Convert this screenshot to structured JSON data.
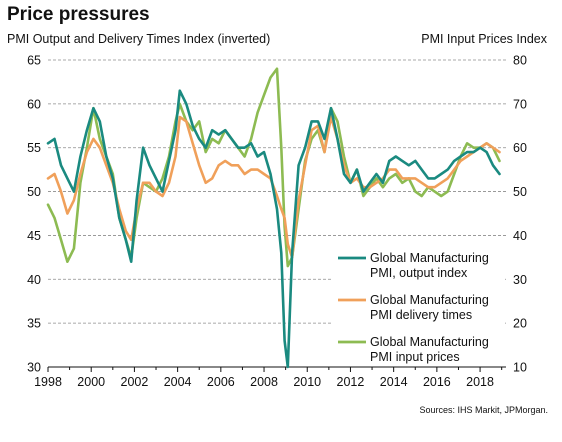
{
  "chart_data": {
    "type": "line",
    "title": "Price pressures",
    "left_axis_title": "PMI Output and Delivery Times Index (inverted)",
    "right_axis_title": "PMI Input Prices Index",
    "source": "Sources: IHS Markit, JPMorgan.",
    "x_ticks": [
      "1998",
      "2000",
      "2002",
      "2004",
      "2006",
      "2008",
      "2010",
      "2012",
      "2014",
      "2016",
      "2018"
    ],
    "xlim": [
      1998,
      2019.2
    ],
    "y_left": {
      "lim": [
        30,
        65
      ],
      "ticks": [
        30,
        35,
        40,
        45,
        50,
        55,
        60,
        65
      ]
    },
    "y_right": {
      "lim": [
        10,
        80
      ],
      "ticks": [
        10,
        20,
        30,
        40,
        50,
        60,
        70,
        80
      ]
    },
    "grid": "horizontal dashed",
    "legend_position": "bottom-right",
    "series": [
      {
        "name": "Global Manufacturing PMI, output index",
        "axis": "left",
        "color": "#1a8a80",
        "x": [
          1998,
          1998.3,
          1998.6,
          1998.9,
          1999.2,
          1999.5,
          1999.8,
          2000.1,
          2000.4,
          2000.7,
          2001.0,
          2001.3,
          2001.6,
          2001.85,
          2002.1,
          2002.4,
          2002.7,
          2003.0,
          2003.3,
          2003.6,
          2003.9,
          2004.1,
          2004.4,
          2004.7,
          2005.0,
          2005.3,
          2005.6,
          2005.9,
          2006.2,
          2006.5,
          2006.8,
          2007.1,
          2007.4,
          2007.7,
          2008.0,
          2008.3,
          2008.6,
          2008.8,
          2008.95,
          2009.1,
          2009.3,
          2009.6,
          2009.9,
          2010.2,
          2010.5,
          2010.8,
          2011.1,
          2011.4,
          2011.7,
          2012.0,
          2012.3,
          2012.6,
          2012.9,
          2013.2,
          2013.5,
          2013.8,
          2014.1,
          2014.4,
          2014.7,
          2015.0,
          2015.3,
          2015.6,
          2015.9,
          2016.2,
          2016.5,
          2016.8,
          2017.1,
          2017.4,
          2017.7,
          2018.0,
          2018.3,
          2018.6,
          2018.9
        ],
        "values": [
          55.5,
          56.0,
          53.0,
          51.5,
          50.0,
          54.0,
          57.0,
          59.5,
          58.0,
          54.0,
          51.5,
          47.0,
          44.5,
          42.0,
          49.0,
          55.0,
          53.0,
          51.5,
          50.0,
          53.5,
          57.0,
          61.5,
          60.0,
          57.5,
          56.0,
          55.0,
          57.0,
          56.5,
          57.0,
          56.0,
          55.0,
          55.0,
          55.5,
          54.0,
          54.5,
          52.0,
          48.0,
          43.0,
          33.0,
          30.0,
          43.0,
          53.0,
          55.0,
          58.0,
          58.0,
          56.0,
          59.5,
          56.0,
          52.0,
          51.0,
          52.5,
          50.0,
          51.0,
          52.0,
          51.0,
          53.5,
          54.0,
          53.5,
          53.0,
          53.5,
          52.5,
          51.5,
          51.5,
          52.0,
          52.5,
          53.5,
          54.0,
          54.5,
          54.5,
          55.0,
          54.5,
          53.0,
          52.0
        ]
      },
      {
        "name": "Global Manufacturing PMI delivery times",
        "axis": "left",
        "color": "#f0a05a",
        "x": [
          1998,
          1998.3,
          1998.6,
          1998.9,
          1999.2,
          1999.5,
          1999.8,
          2000.1,
          2000.4,
          2000.7,
          2001.0,
          2001.3,
          2001.6,
          2001.85,
          2002.1,
          2002.4,
          2002.7,
          2003.0,
          2003.3,
          2003.6,
          2003.9,
          2004.1,
          2004.4,
          2004.7,
          2005.0,
          2005.3,
          2005.6,
          2005.9,
          2006.2,
          2006.5,
          2006.8,
          2007.1,
          2007.4,
          2007.7,
          2008.0,
          2008.3,
          2008.6,
          2008.8,
          2008.95,
          2009.1,
          2009.3,
          2009.6,
          2009.9,
          2010.2,
          2010.5,
          2010.8,
          2011.1,
          2011.4,
          2011.7,
          2012.0,
          2012.3,
          2012.6,
          2012.9,
          2013.2,
          2013.5,
          2013.8,
          2014.1,
          2014.4,
          2014.7,
          2015.0,
          2015.3,
          2015.6,
          2015.9,
          2016.2,
          2016.5,
          2016.8,
          2017.1,
          2017.4,
          2017.7,
          2018.0,
          2018.3,
          2018.6,
          2018.9
        ],
        "values": [
          51.5,
          52.0,
          50.0,
          47.5,
          49.0,
          52.0,
          54.5,
          56.0,
          55.0,
          53.0,
          51.0,
          48.0,
          45.5,
          44.5,
          48.0,
          51.0,
          51.0,
          50.0,
          49.5,
          51.0,
          54.0,
          58.5,
          58.0,
          55.5,
          53.0,
          51.0,
          51.5,
          53.0,
          53.5,
          53.0,
          53.0,
          52.0,
          52.5,
          52.5,
          52.0,
          51.5,
          49.5,
          48.0,
          47.0,
          44.0,
          42.5,
          49.0,
          53.0,
          57.0,
          57.5,
          54.5,
          58.5,
          56.0,
          53.0,
          51.0,
          51.5,
          50.5,
          50.5,
          51.0,
          51.5,
          52.5,
          52.5,
          51.5,
          51.5,
          51.5,
          51.0,
          50.5,
          50.5,
          51.0,
          51.5,
          52.5,
          53.5,
          54.0,
          54.5,
          55.0,
          55.5,
          55.0,
          54.5
        ]
      },
      {
        "name": "Global Manufacturing PMI input prices",
        "axis": "right",
        "color": "#8dbb52",
        "x": [
          1998,
          1998.3,
          1998.6,
          1998.9,
          1999.2,
          1999.5,
          1999.8,
          2000.1,
          2000.4,
          2000.7,
          2001.0,
          2001.3,
          2001.6,
          2001.85,
          2002.1,
          2002.4,
          2002.7,
          2003.0,
          2003.3,
          2003.6,
          2003.9,
          2004.1,
          2004.4,
          2004.7,
          2005.0,
          2005.3,
          2005.6,
          2005.9,
          2006.2,
          2006.5,
          2006.8,
          2007.1,
          2007.4,
          2007.7,
          2008.0,
          2008.3,
          2008.6,
          2008.8,
          2008.95,
          2009.1,
          2009.3,
          2009.6,
          2009.9,
          2010.2,
          2010.5,
          2010.8,
          2011.1,
          2011.4,
          2011.7,
          2012.0,
          2012.3,
          2012.6,
          2012.9,
          2013.2,
          2013.5,
          2013.8,
          2014.1,
          2014.4,
          2014.7,
          2015.0,
          2015.3,
          2015.6,
          2015.9,
          2016.2,
          2016.5,
          2016.8,
          2017.1,
          2017.4,
          2017.7,
          2018.0,
          2018.3,
          2018.6,
          2018.9
        ],
        "values": [
          47,
          44,
          39,
          34,
          37,
          52,
          60,
          69,
          62,
          58,
          54,
          44,
          39,
          35,
          44,
          52,
          51,
          50,
          53,
          58,
          66,
          70,
          66,
          64,
          66,
          59,
          62,
          61,
          64,
          62,
          60,
          58,
          62,
          68,
          72,
          76,
          78,
          60,
          42,
          33,
          35,
          46,
          57,
          62,
          64,
          59,
          69,
          66,
          58,
          52,
          55,
          49,
          51,
          53,
          51,
          53,
          54,
          52,
          53,
          50,
          49,
          51,
          50,
          49,
          50,
          54,
          58,
          61,
          60,
          60,
          61,
          60,
          57
        ]
      }
    ]
  }
}
